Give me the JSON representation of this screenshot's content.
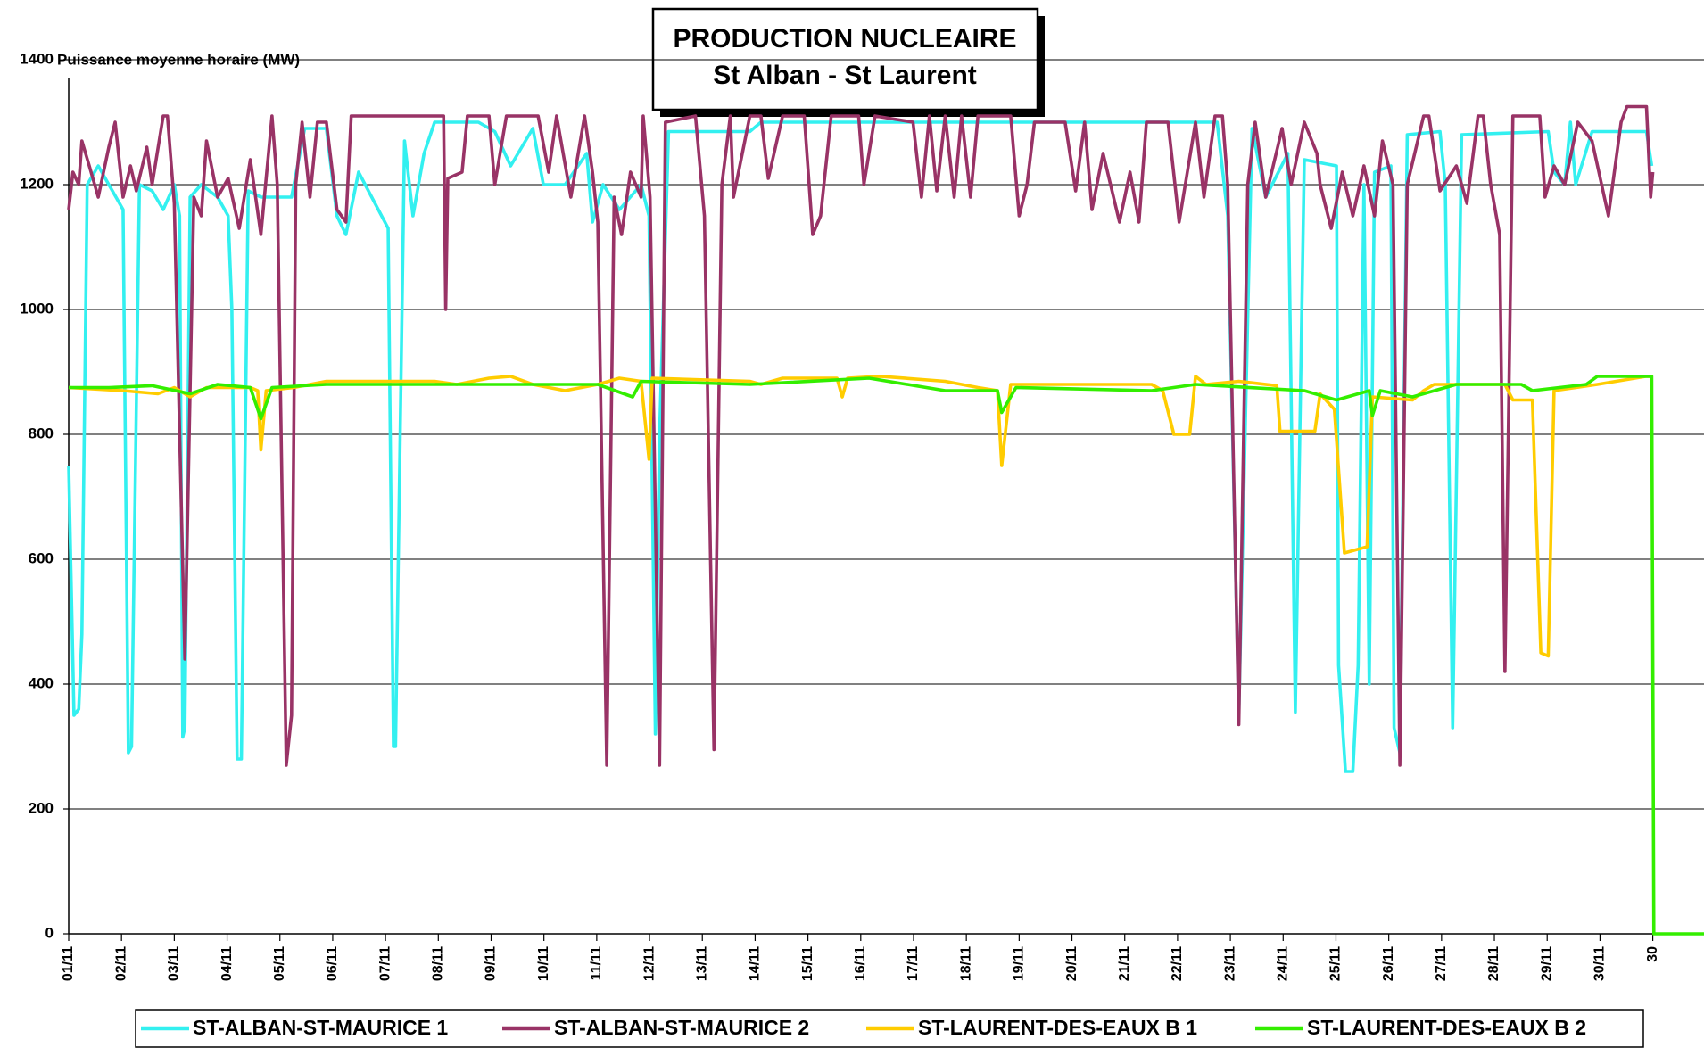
{
  "chart_data": {
    "type": "line",
    "title": "PRODUCTION NUCLEAIRE",
    "subtitle": "St Alban - St Laurent",
    "ylabel": "Puissance moyenne horaire (MW)",
    "xlim": [
      0,
      30.97
    ],
    "xticks": [
      {
        "value": 0,
        "label": "01/11"
      },
      {
        "value": 1,
        "label": "02/11"
      },
      {
        "value": 2,
        "label": "03/11"
      },
      {
        "value": 3,
        "label": "04/11"
      },
      {
        "value": 4,
        "label": "05/11"
      },
      {
        "value": 5,
        "label": "06/11"
      },
      {
        "value": 6,
        "label": "07/11"
      },
      {
        "value": 7,
        "label": "08/11"
      },
      {
        "value": 8,
        "label": "09/11"
      },
      {
        "value": 9,
        "label": "10/11"
      },
      {
        "value": 10,
        "label": "11/11"
      },
      {
        "value": 11,
        "label": "12/11"
      },
      {
        "value": 12,
        "label": "13/11"
      },
      {
        "value": 13,
        "label": "14/11"
      },
      {
        "value": 14,
        "label": "15/11"
      },
      {
        "value": 15,
        "label": "16/11"
      },
      {
        "value": 16,
        "label": "17/11"
      },
      {
        "value": 17,
        "label": "18/11"
      },
      {
        "value": 18,
        "label": "19/11"
      },
      {
        "value": 19,
        "label": "20/11"
      },
      {
        "value": 20,
        "label": "21/11"
      },
      {
        "value": 21,
        "label": "22/11"
      },
      {
        "value": 22,
        "label": "23/11"
      },
      {
        "value": 23,
        "label": "24/11"
      },
      {
        "value": 24,
        "label": "25/11"
      },
      {
        "value": 25,
        "label": "26/11"
      },
      {
        "value": 26,
        "label": "27/11"
      },
      {
        "value": 27,
        "label": "28/11"
      },
      {
        "value": 28,
        "label": "29/11"
      },
      {
        "value": 29,
        "label": "30/11"
      },
      30
    ],
    "ylim": [
      0,
      1400
    ],
    "yticks": [
      0,
      200,
      400,
      600,
      800,
      1000,
      1200,
      1400
    ],
    "grid": true,
    "legend": "bottom",
    "series": [
      {
        "name": "ST-ALBAN-ST-MAURICE 1",
        "color": "#33f0f0",
        "x": [
          0,
          0.1,
          0.19,
          0.25,
          0.35,
          0.56,
          0.76,
          1.03,
          1.13,
          1.19,
          1.34,
          1.58,
          1.79,
          2.0,
          2.1,
          2.16,
          2.2,
          2.3,
          2.51,
          2.82,
          3.02,
          3.09,
          3.19,
          3.27,
          3.4,
          3.64,
          3.85,
          3.95,
          4.22,
          4.47,
          4.88,
          5.08,
          5.25,
          5.49,
          6.05,
          6.15,
          6.19,
          6.36,
          6.52,
          6.73,
          6.93,
          7.76,
          8.07,
          8.37,
          8.79,
          8.99,
          9.4,
          9.81,
          9.92,
          10.12,
          10.43,
          10.84,
          10.99,
          11.11,
          11.19,
          11.36,
          12.9,
          13.11,
          21.75,
          21.95,
          22.16,
          22.41,
          22.67,
          23.09,
          23.23,
          23.4,
          24.01,
          24.05,
          24.18,
          24.32,
          24.42,
          24.53,
          24.63,
          24.73,
          25.04,
          25.1,
          25.21,
          25.35,
          25.97,
          26.07,
          26.21,
          26.38,
          28.02,
          28.13,
          28.33,
          28.44,
          28.54,
          28.85,
          29.88,
          29.98
        ],
        "values": [
          750,
          350,
          360,
          480,
          1200,
          1230,
          1200,
          1160,
          290,
          300,
          1200,
          1190,
          1160,
          1200,
          1150,
          315,
          330,
          1180,
          1200,
          1180,
          1150,
          1000,
          280,
          280,
          1190,
          1180,
          1180,
          1180,
          1180,
          1290,
          1290,
          1150,
          1120,
          1220,
          1130,
          300,
          300,
          1270,
          1150,
          1250,
          1300,
          1300,
          1285,
          1230,
          1290,
          1200,
          1200,
          1250,
          1140,
          1200,
          1160,
          1200,
          1150,
          320,
          800,
          1285,
          1285,
          1300,
          1300,
          1150,
          350,
          1290,
          1180,
          1250,
          355,
          1240,
          1230,
          430,
          260,
          260,
          430,
          1200,
          400,
          1220,
          1230,
          330,
          290,
          1280,
          1285,
          1200,
          330,
          1280,
          1285,
          1220,
          1200,
          1300,
          1200,
          1285,
          1285,
          1230
        ]
      },
      {
        "name": "ST-ALBAN-ST-MAURICE 2",
        "color": "#993366",
        "x": [
          0,
          0.08,
          0.19,
          0.25,
          0.39,
          0.56,
          0.76,
          0.88,
          1.03,
          1.17,
          1.28,
          1.48,
          1.58,
          1.79,
          1.87,
          2.0,
          2.2,
          2.37,
          2.51,
          2.61,
          2.82,
          3.02,
          3.23,
          3.44,
          3.64,
          3.85,
          3.95,
          4.12,
          4.22,
          4.3,
          4.42,
          4.57,
          4.71,
          4.88,
          5.08,
          5.25,
          5.35,
          7.1,
          7.14,
          7.18,
          7.45,
          7.55,
          7.96,
          8.07,
          8.29,
          8.89,
          9.09,
          9.24,
          9.51,
          9.77,
          9.92,
          10.02,
          10.19,
          10.33,
          10.47,
          10.64,
          10.84,
          10.88,
          11.01,
          11.19,
          11.3,
          11.87,
          12.04,
          12.22,
          12.37,
          12.53,
          12.59,
          12.9,
          13.11,
          13.25,
          13.52,
          13.93,
          14.09,
          14.24,
          14.44,
          14.96,
          15.06,
          15.27,
          15.99,
          16.15,
          16.3,
          16.44,
          16.6,
          16.77,
          16.91,
          17.08,
          17.22,
          17.84,
          18.0,
          18.15,
          18.29,
          18.87,
          19.07,
          19.24,
          19.38,
          19.59,
          19.9,
          20.1,
          20.27,
          20.41,
          20.82,
          21.03,
          21.34,
          21.5,
          21.71,
          21.85,
          21.95,
          22.16,
          22.33,
          22.47,
          22.67,
          22.98,
          23.15,
          23.4,
          23.64,
          23.7,
          23.91,
          24.12,
          24.32,
          24.53,
          24.73,
          24.88,
          25.08,
          25.21,
          25.35,
          25.66,
          25.76,
          25.97,
          26.28,
          26.48,
          26.69,
          26.79,
          26.93,
          27.1,
          27.2,
          27.35,
          27.86,
          27.96,
          28.13,
          28.33,
          28.58,
          28.85,
          29.16,
          29.4,
          29.51,
          29.88,
          29.96,
          30.0
        ],
        "values": [
          1160,
          1220,
          1200,
          1270,
          1230,
          1180,
          1260,
          1300,
          1180,
          1230,
          1190,
          1260,
          1200,
          1310,
          1310,
          1170,
          440,
          1180,
          1150,
          1270,
          1180,
          1210,
          1130,
          1240,
          1120,
          1310,
          1200,
          270,
          350,
          1200,
          1300,
          1180,
          1300,
          1300,
          1160,
          1140,
          1310,
          1310,
          1000,
          1210,
          1220,
          1310,
          1310,
          1200,
          1310,
          1310,
          1220,
          1310,
          1180,
          1310,
          1220,
          1140,
          270,
          1180,
          1120,
          1220,
          1180,
          1310,
          1180,
          270,
          1300,
          1310,
          1150,
          295,
          1200,
          1310,
          1180,
          1310,
          1310,
          1210,
          1310,
          1310,
          1120,
          1150,
          1310,
          1310,
          1200,
          1310,
          1300,
          1180,
          1310,
          1190,
          1310,
          1180,
          1310,
          1180,
          1310,
          1310,
          1150,
          1200,
          1300,
          1300,
          1190,
          1300,
          1160,
          1250,
          1140,
          1220,
          1140,
          1300,
          1300,
          1140,
          1300,
          1180,
          1310,
          1310,
          1200,
          335,
          1200,
          1300,
          1180,
          1290,
          1200,
          1300,
          1250,
          1200,
          1130,
          1220,
          1150,
          1230,
          1150,
          1270,
          1200,
          270,
          1200,
          1310,
          1310,
          1190,
          1230,
          1170,
          1310,
          1310,
          1200,
          1120,
          420,
          1310,
          1310,
          1180,
          1230,
          1200,
          1300,
          1270,
          1150,
          1300,
          1325,
          1325,
          1180,
          1220
        ]
      },
      {
        "name": "ST-LAURENT-DES-EAUX B 1",
        "color": "#ffcc00",
        "x": [
          0,
          1.03,
          1.69,
          2.0,
          2.3,
          2.61,
          3.44,
          3.58,
          3.64,
          3.74,
          4.26,
          4.88,
          6.93,
          7.35,
          7.96,
          8.37,
          8.79,
          9.4,
          10.02,
          10.43,
          10.84,
          10.99,
          11.05,
          12.9,
          13.11,
          13.52,
          14.55,
          14.65,
          14.75,
          15.37,
          16.6,
          17.22,
          17.59,
          17.67,
          17.84,
          20.51,
          20.72,
          20.93,
          21.23,
          21.34,
          21.54,
          22.16,
          22.88,
          22.94,
          23.6,
          23.7,
          23.97,
          24.16,
          24.59,
          24.69,
          25.45,
          25.66,
          25.86,
          27.2,
          27.35,
          27.72,
          27.88,
          28.02,
          28.13,
          28.95,
          29.88,
          29.98
        ],
        "values": [
          875,
          870,
          865,
          875,
          860,
          875,
          875,
          870,
          775,
          870,
          875,
          885,
          885,
          880,
          890,
          893,
          880,
          870,
          880,
          890,
          885,
          760,
          890,
          885,
          880,
          890,
          890,
          860,
          890,
          893,
          885,
          875,
          870,
          750,
          880,
          880,
          870,
          800,
          800,
          893,
          880,
          885,
          878,
          805,
          805,
          865,
          840,
          610,
          620,
          860,
          855,
          870,
          880,
          880,
          855,
          855,
          450,
          445,
          870,
          880,
          893,
          893
        ]
      },
      {
        "name": "ST-LAURENT-DES-EAUX B 2",
        "color": "#33ee00",
        "x": [
          0,
          0.76,
          1.58,
          2.3,
          2.82,
          3.44,
          3.64,
          3.85,
          4.88,
          10.02,
          10.68,
          10.84,
          12.9,
          15.16,
          16.6,
          17.59,
          17.67,
          17.94,
          20.51,
          21.34,
          23.4,
          24.01,
          24.63,
          24.69,
          24.84,
          25.45,
          26.28,
          27.51,
          27.72,
          28.74,
          28.95,
          29.98,
          30.02,
          30.97
        ],
        "values": [
          875,
          875,
          878,
          865,
          880,
          875,
          825,
          875,
          880,
          880,
          860,
          885,
          880,
          890,
          870,
          870,
          835,
          875,
          870,
          880,
          870,
          855,
          870,
          830,
          870,
          860,
          880,
          880,
          870,
          880,
          893,
          893,
          0,
          0
        ]
      }
    ]
  }
}
